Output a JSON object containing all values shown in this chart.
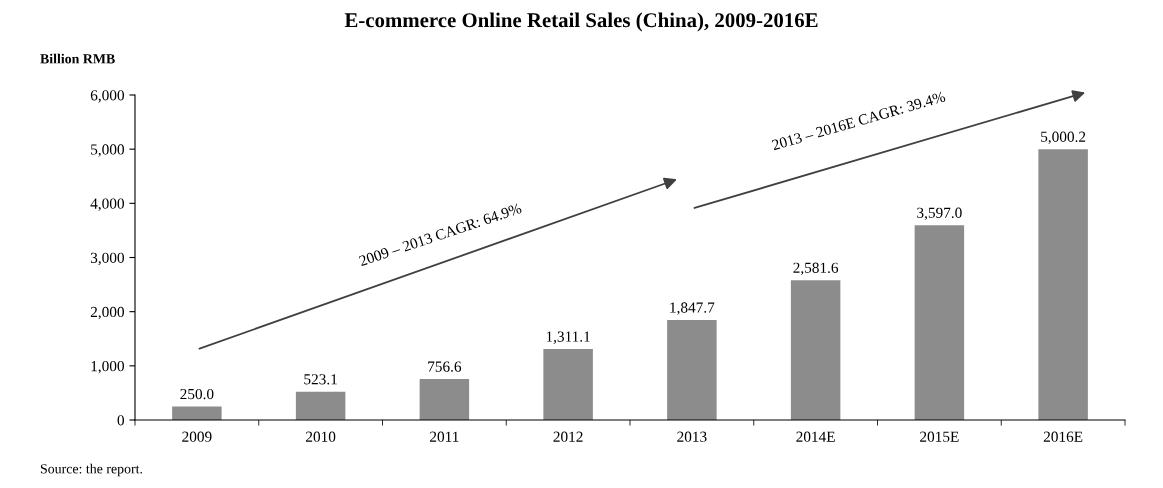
{
  "chart_data": {
    "type": "bar",
    "title": "E-commerce Online Retail Sales (China), 2009-2016E",
    "ylabel": "Billion RMB",
    "categories": [
      "2009",
      "2010",
      "2011",
      "2012",
      "2013",
      "2014E",
      "2015E",
      "2016E"
    ],
    "values": [
      250.0,
      523.1,
      756.6,
      1311.1,
      1847.7,
      2581.6,
      3597.0,
      5000.2
    ],
    "value_labels": [
      "250.0",
      "523.1",
      "756.6",
      "1,311.1",
      "1,847.7",
      "2,581.6",
      "3,597.0",
      "5,000.2"
    ],
    "color": "#8c8c8c",
    "ylim": [
      0,
      6000
    ],
    "yticks": [
      {
        "value": 0,
        "label": "0"
      },
      {
        "value": 1000,
        "label": "1,000"
      },
      {
        "value": 2000,
        "label": "2,000"
      },
      {
        "value": 3000,
        "label": "3,000"
      },
      {
        "value": 4000,
        "label": "4,000"
      },
      {
        "value": 5000,
        "label": "5,000"
      },
      {
        "value": 6000,
        "label": "6,000"
      }
    ],
    "grid": false,
    "legend": false,
    "annotations": [
      "2009 – 2013 CAGR: 64.9%",
      "2013 – 2016E CAGR: 39.4%",
      "Source: the report."
    ]
  }
}
